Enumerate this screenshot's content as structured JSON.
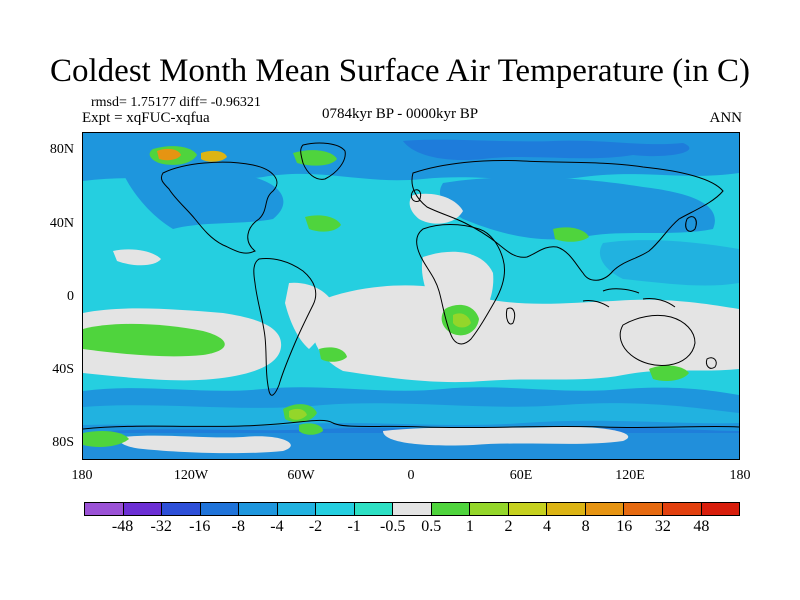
{
  "title": "Coldest Month Mean Surface Air Temperature (in C)",
  "stats": "rmsd= 1.75177  diff= -0.96321",
  "expt": "Expt = xqFUC-xqfua",
  "period": "0784kyr BP - 0000kyr BP",
  "season": "ANN",
  "map": {
    "lat_ticks": [
      "80N",
      "40N",
      "0",
      "40S",
      "80S"
    ],
    "lon_ticks": [
      "180",
      "120W",
      "60W",
      "0",
      "60E",
      "120E",
      "180"
    ]
  },
  "colorbar": {
    "labels": [
      "-48",
      "-32",
      "-16",
      "-8",
      "-4",
      "-2",
      "-1",
      "-0.5",
      "0.5",
      "1",
      "2",
      "4",
      "8",
      "16",
      "32",
      "48"
    ],
    "colors": [
      "#9b52d6",
      "#6c2fd4",
      "#2d4fd8",
      "#1f73d9",
      "#1e96dd",
      "#21b2e0",
      "#25cfe0",
      "#2de0c4",
      "#e4e4e4",
      "#4fd43d",
      "#94d62a",
      "#c6d11f",
      "#dcb414",
      "#e69412",
      "#e66a10",
      "#e2400e",
      "#d81e0c"
    ]
  },
  "palette": {
    "neutral": "#e4e4e4",
    "light_cyan": "#25cfe0",
    "cyan": "#21b2e0",
    "sky_blue": "#1e96dd",
    "blue": "#1f73d9",
    "green": "#4fd43d",
    "yellow_green": "#94d62a",
    "orange": "#e69412"
  }
}
